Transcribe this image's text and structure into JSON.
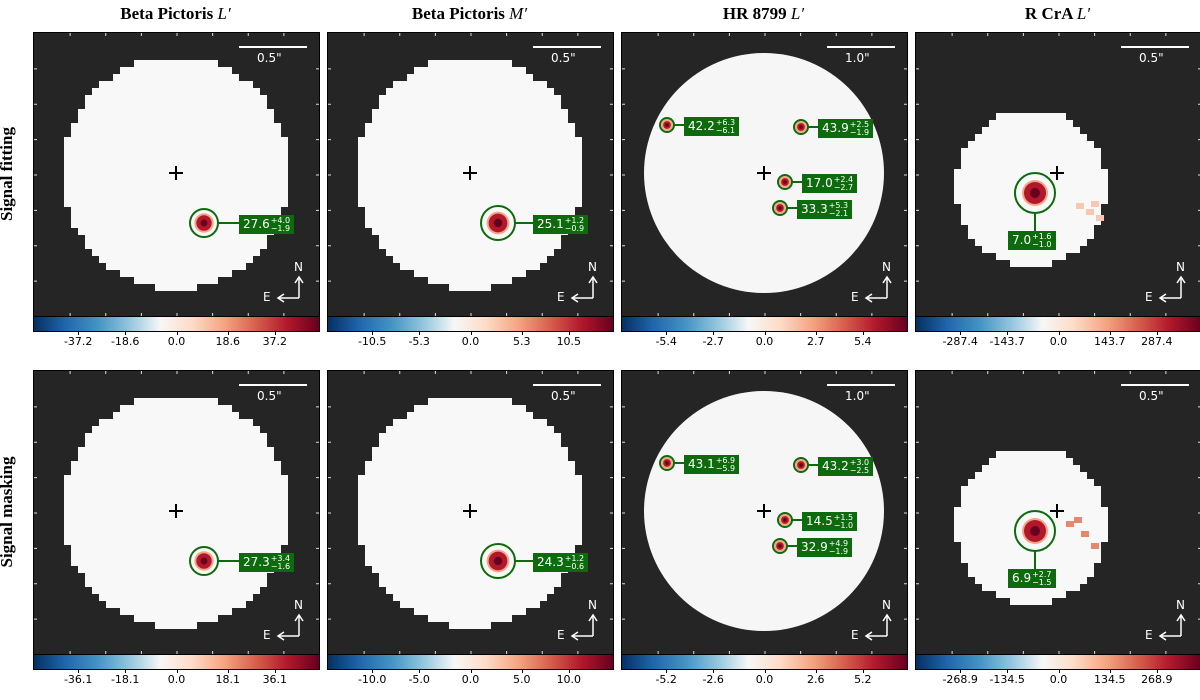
{
  "columns": [
    {
      "title_main": "Beta Pictoris",
      "title_band": "L′",
      "scale": "0.5\""
    },
    {
      "title_main": "Beta Pictoris",
      "title_band": "M′",
      "scale": "0.5\""
    },
    {
      "title_main": "HR 8799",
      "title_band": "L′",
      "scale": "1.0\""
    },
    {
      "title_main": "R CrA",
      "title_band": "L′",
      "scale": "0.5\""
    }
  ],
  "rows": [
    "Signal fitting",
    "Signal masking"
  ],
  "compass": {
    "north": "N",
    "east": "E"
  },
  "panels": [
    [
      {
        "labels": [
          {
            "v": "27.6",
            "p": "+4.0",
            "m": "−1.9"
          }
        ],
        "ticks": [
          "-37.2",
          "-18.6",
          "0.0",
          "18.6",
          "37.2"
        ]
      },
      {
        "labels": [
          {
            "v": "25.1",
            "p": "+1.2",
            "m": "−0.9"
          }
        ],
        "ticks": [
          "-10.5",
          "-5.3",
          "0.0",
          "5.3",
          "10.5"
        ]
      },
      {
        "labels": [
          {
            "v": "42.2",
            "p": "+6.3",
            "m": "−6.1"
          },
          {
            "v": "43.9",
            "p": "+2.5",
            "m": "−1.9"
          },
          {
            "v": "17.0",
            "p": "+2.4",
            "m": "−2.7"
          },
          {
            "v": "33.3",
            "p": "+5.3",
            "m": "−2.1"
          }
        ],
        "ticks": [
          "-5.4",
          "-2.7",
          "0.0",
          "2.7",
          "5.4"
        ]
      },
      {
        "labels": [
          {
            "v": "7.0",
            "p": "+1.6",
            "m": "−1.0"
          }
        ],
        "ticks": [
          "-287.4",
          "-143.7",
          "0.0",
          "143.7",
          "287.4"
        ]
      }
    ],
    [
      {
        "labels": [
          {
            "v": "27.3",
            "p": "+3.4",
            "m": "−1.6"
          }
        ],
        "ticks": [
          "-36.1",
          "-18.1",
          "0.0",
          "18.1",
          "36.1"
        ]
      },
      {
        "labels": [
          {
            "v": "24.3",
            "p": "+1.2",
            "m": "−0.6"
          }
        ],
        "ticks": [
          "-10.0",
          "-5.0",
          "0.0",
          "5.0",
          "10.0"
        ]
      },
      {
        "labels": [
          {
            "v": "43.1",
            "p": "+6.9",
            "m": "−5.9"
          },
          {
            "v": "43.2",
            "p": "+3.0",
            "m": "−2.5"
          },
          {
            "v": "14.5",
            "p": "+1.5",
            "m": "−1.0"
          },
          {
            "v": "32.9",
            "p": "+4.9",
            "m": "−1.9"
          }
        ],
        "ticks": [
          "-5.2",
          "-2.6",
          "0.0",
          "2.6",
          "5.2"
        ]
      },
      {
        "labels": [
          {
            "v": "6.9",
            "p": "+2.7",
            "m": "−1.5"
          }
        ],
        "ticks": [
          "-268.9",
          "-134.5",
          "0.0",
          "134.5",
          "268.9"
        ]
      }
    ]
  ],
  "colors": {
    "panel_bg": "#252525",
    "label_bg": "#0d6b0d",
    "ring": "#0d6b0d",
    "planet": "#b2182b"
  }
}
